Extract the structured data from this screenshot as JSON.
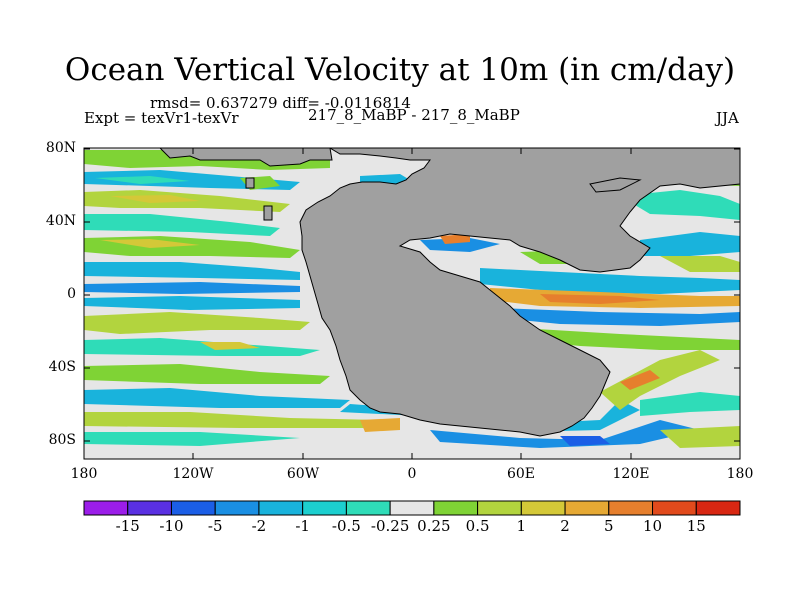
{
  "title": "Ocean Vertical Velocity at 10m (in cm/day)",
  "stats": "rmsd= 0.637279 diff= -0.0116814",
  "expt": "Expt = texVr1-texVr",
  "runs": "217_8_MaBP - 217_8_MaBP",
  "season": "JJA",
  "y_axis": [
    "80N",
    "40N",
    "0",
    "40S",
    "80S"
  ],
  "x_axis": [
    "180",
    "120W",
    "60W",
    "0",
    "60E",
    "120E",
    "180"
  ],
  "colorbar": {
    "labels": [
      "-15",
      "-10",
      "-5",
      "-2",
      "-1",
      "-0.5",
      "-0.25",
      "0.25",
      "0.5",
      "1",
      "2",
      "5",
      "10",
      "15"
    ],
    "colors": [
      "#9b1de9",
      "#5a30e2",
      "#1b5ee6",
      "#1a8fe3",
      "#19b3dc",
      "#1ccfcf",
      "#2fdcb8",
      "#e6e6e6",
      "#7fd335",
      "#b2d43e",
      "#d4c838",
      "#e6a934",
      "#e67f2d",
      "#e14a1c",
      "#d82712"
    ]
  },
  "land_color": "#a0a0a0"
}
